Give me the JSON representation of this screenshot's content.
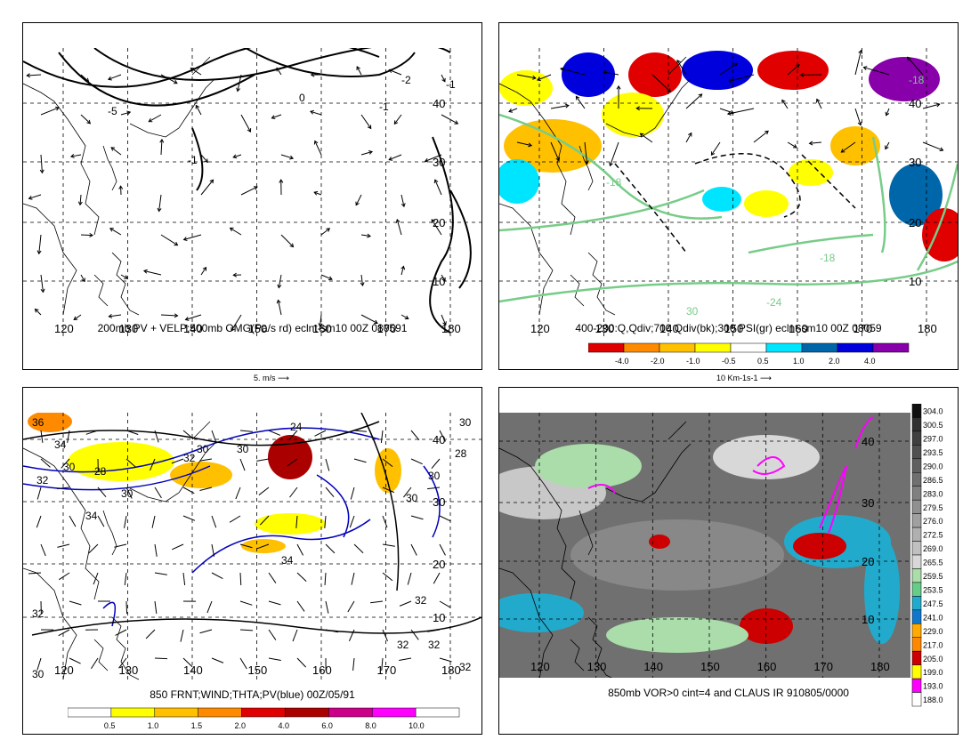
{
  "panels": [
    {
      "id": "tl",
      "caption": "200mb PV + VELP;500mb OMG(Pa/s rd) eclnt-sm10 00Z 080591",
      "lon_labels": [
        "120",
        "130",
        "140",
        "150",
        "160",
        "170",
        "180"
      ],
      "lat_labels": [
        "40",
        "30",
        "20",
        "10"
      ],
      "contour_labels": [
        "-5",
        "-1",
        "0",
        "-1",
        "-2",
        "-1"
      ],
      "vector_label": "5. m/s"
    },
    {
      "id": "tr",
      "caption": "400-200:Q,Qdiv;700 Qdiv(bk);300 PSI(gr) eclnt-sm10 00Z 08059",
      "lon_labels": [
        "120",
        "130",
        "140",
        "150",
        "160",
        "170",
        "180"
      ],
      "lat_labels": [
        "40",
        "30",
        "20",
        "10"
      ],
      "contour_labels": [
        "-18",
        "-18",
        "-18",
        "-24",
        "30"
      ],
      "colorbar": [
        "-4.0",
        "-2.0",
        "-1.0",
        "-0.5",
        "0.5",
        "1.0",
        "2.0",
        "4.0"
      ],
      "colorbar_colors": [
        "#e00000",
        "#ff8a00",
        "#ffc000",
        "#ffff00",
        "#ffffff",
        "#00e5ff",
        "#0066aa",
        "#0000dd",
        "#8800aa"
      ],
      "vector_label": "10 Km-1s-1"
    },
    {
      "id": "bl",
      "caption": "850 FRNT;WIND;THTA;PV(blue) 00Z/05/91",
      "lon_labels": [
        "120",
        "130",
        "140",
        "150",
        "160",
        "170",
        "180"
      ],
      "lat_labels": [
        "40",
        "30",
        "20",
        "10"
      ],
      "contour_labels": [
        "36",
        "34",
        "30",
        "32",
        "28",
        "30",
        "30",
        "30",
        "24",
        "30",
        "32",
        "30",
        "28",
        "34",
        "30",
        "34",
        "32",
        "32",
        "32",
        "32",
        "32",
        "30"
      ],
      "colorbar": [
        "0.5",
        "1.0",
        "1.5",
        "2.0",
        "4.0",
        "6.0",
        "8.0",
        "10.0"
      ],
      "colorbar_colors": [
        "#ffffff",
        "#ffff00",
        "#ffc000",
        "#ff8a00",
        "#e00000",
        "#aa0000",
        "#cc0088",
        "#ff00ff",
        "#ffffff"
      ]
    },
    {
      "id": "br",
      "caption": "850mb VOR>0 cint=4 and CLAUS IR 910805/0000",
      "lon_labels": [
        "120",
        "130",
        "140",
        "150",
        "160",
        "170",
        "180"
      ],
      "lat_labels": [
        "40",
        "30",
        "20",
        "10"
      ],
      "colorbar": [
        "304.0",
        "300.5",
        "297.0",
        "293.5",
        "290.0",
        "286.5",
        "283.0",
        "279.5",
        "276.0",
        "272.5",
        "269.0",
        "265.5",
        "259.5",
        "253.5",
        "247.5",
        "241.0",
        "229.0",
        "217.0",
        "205.0",
        "199.0",
        "193.0",
        "188.0"
      ],
      "colorbar_colors": [
        "#101010",
        "#303030",
        "#404040",
        "#505050",
        "#606060",
        "#707070",
        "#808080",
        "#909090",
        "#a0a0a0",
        "#b0b0b0",
        "#c0c0c0",
        "#d8d8d8",
        "#aaddaa",
        "#66cc88",
        "#22aacc",
        "#1177cc",
        "#ffaa00",
        "#ff8800",
        "#cc0000",
        "#ffff00",
        "#ff00ff",
        "#ffffff"
      ]
    }
  ]
}
